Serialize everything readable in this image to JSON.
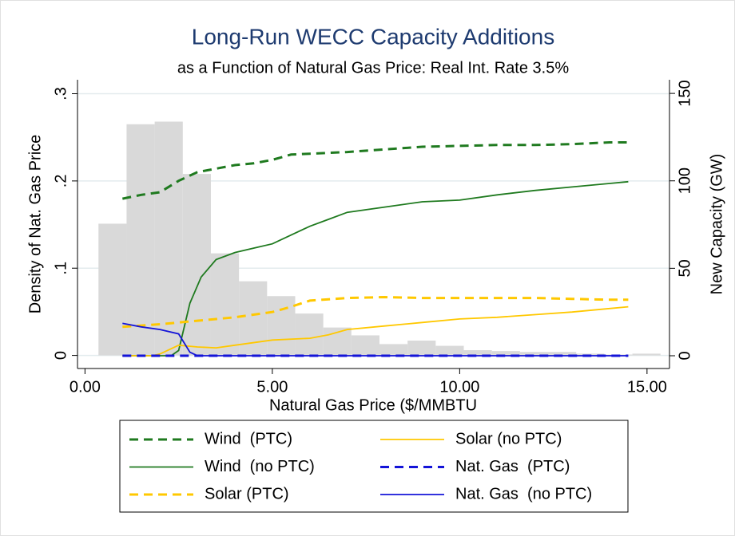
{
  "chart_data": {
    "type": "combo",
    "title": "Long-Run WECC Capacity Additions",
    "subtitle": "as a Function of Natural Gas Price: Real Int. Rate 3.5%",
    "x_label": "Natural Gas Price ($/MMBTU",
    "y_label": "Density of Nat. Gas Price",
    "y2_label": "New Capacity (GW)",
    "xlim": [
      -0.2,
      15.6
    ],
    "ylim": [
      -0.015,
      0.316
    ],
    "y2lim": [
      -7.3,
      157.8
    ],
    "xticks": [
      {
        "value": 0,
        "label": "0.00"
      },
      {
        "value": 5,
        "label": "5.00"
      },
      {
        "value": 10,
        "label": "10.00"
      },
      {
        "value": 15,
        "label": "15.00"
      }
    ],
    "yticks": [
      {
        "value": 0,
        "label": "0"
      },
      {
        "value": 0.1,
        "label": ".1"
      },
      {
        "value": 0.2,
        "label": ".2"
      },
      {
        "value": 0.3,
        "label": ".3"
      }
    ],
    "y2ticks": [
      0,
      50,
      100,
      150
    ],
    "grid": true,
    "histogram": {
      "color": "#d9d9d9",
      "bins": [
        0.36,
        1.11,
        1.86,
        2.61,
        3.36,
        4.11,
        4.86,
        5.61,
        6.36,
        7.11,
        7.86,
        8.61,
        9.36,
        10.11,
        10.86,
        11.61,
        12.36,
        13.11,
        13.86,
        14.61,
        15.36
      ],
      "values": [
        0.151,
        0.265,
        0.268,
        0.208,
        0.117,
        0.085,
        0.068,
        0.048,
        0.032,
        0.023,
        0.013,
        0.017,
        0.011,
        0.006,
        0.005,
        0.004,
        0.004,
        0.002,
        0.001,
        0.002
      ]
    },
    "series": [
      {
        "name": "Wind  (PTC)",
        "color": "#1f7a1f",
        "style": "dashed",
        "axis": "y2",
        "x": [
          1,
          1.5,
          2,
          2.5,
          3,
          3.5,
          4,
          4.5,
          5,
          5.5,
          6,
          7,
          8,
          9,
          10,
          11,
          12,
          13,
          14,
          14.5
        ],
        "values": [
          89.8,
          92,
          93.5,
          100,
          105,
          107,
          109,
          110,
          112,
          115,
          115.5,
          116.5,
          118,
          119.5,
          120,
          120.5,
          120.5,
          121,
          122,
          122
        ]
      },
      {
        "name": "Wind  (no PTC)",
        "color": "#1f7a1f",
        "style": "solid",
        "axis": "y2",
        "x": [
          1,
          2.3,
          2.5,
          2.8,
          3.1,
          3.5,
          4,
          4.5,
          5,
          5.5,
          6,
          6.5,
          7,
          8,
          9,
          10,
          11,
          12,
          13,
          14,
          14.5
        ],
        "values": [
          0,
          0,
          3,
          30,
          45,
          55,
          59,
          61.5,
          64,
          69,
          74,
          78,
          82,
          85,
          88,
          89,
          92,
          94.5,
          96.5,
          98.5,
          99.5
        ]
      },
      {
        "name": "Solar (PTC)",
        "color": "#ffc800",
        "style": "dashed",
        "axis": "y2",
        "x": [
          1,
          2,
          3,
          4,
          5,
          5.5,
          6,
          7,
          8,
          9,
          10,
          11,
          12,
          13,
          14,
          14.5
        ],
        "values": [
          16.5,
          18,
          20,
          22,
          25,
          28,
          31.5,
          33,
          33.5,
          33,
          33,
          33,
          33,
          32.5,
          32,
          32
        ]
      },
      {
        "name": "Solar (no PTC)",
        "color": "#ffc800",
        "style": "solid",
        "axis": "y2",
        "x": [
          1,
          1.8,
          2,
          2.5,
          3,
          3.5,
          4,
          5,
          6,
          6.5,
          7,
          8,
          9,
          10,
          11,
          12,
          13,
          14,
          14.5
        ],
        "values": [
          0,
          0,
          1,
          6,
          5,
          4.5,
          6,
          9,
          10,
          12,
          15,
          17,
          19,
          21,
          22,
          23.5,
          25,
          27,
          28
        ]
      },
      {
        "name": "Nat. Gas  (PTC)",
        "color": "#1414d8",
        "style": "dashed",
        "axis": "y2",
        "x": [
          1,
          14.5
        ],
        "values": [
          0,
          0
        ]
      },
      {
        "name": "Nat. Gas  (no PTC)",
        "color": "#1414d8",
        "style": "solid",
        "axis": "y2",
        "x": [
          1,
          1.5,
          2,
          2.5,
          2.8,
          3,
          3.5,
          14.5
        ],
        "values": [
          18.5,
          16.5,
          15,
          12.5,
          2,
          0,
          0,
          0
        ]
      }
    ]
  }
}
